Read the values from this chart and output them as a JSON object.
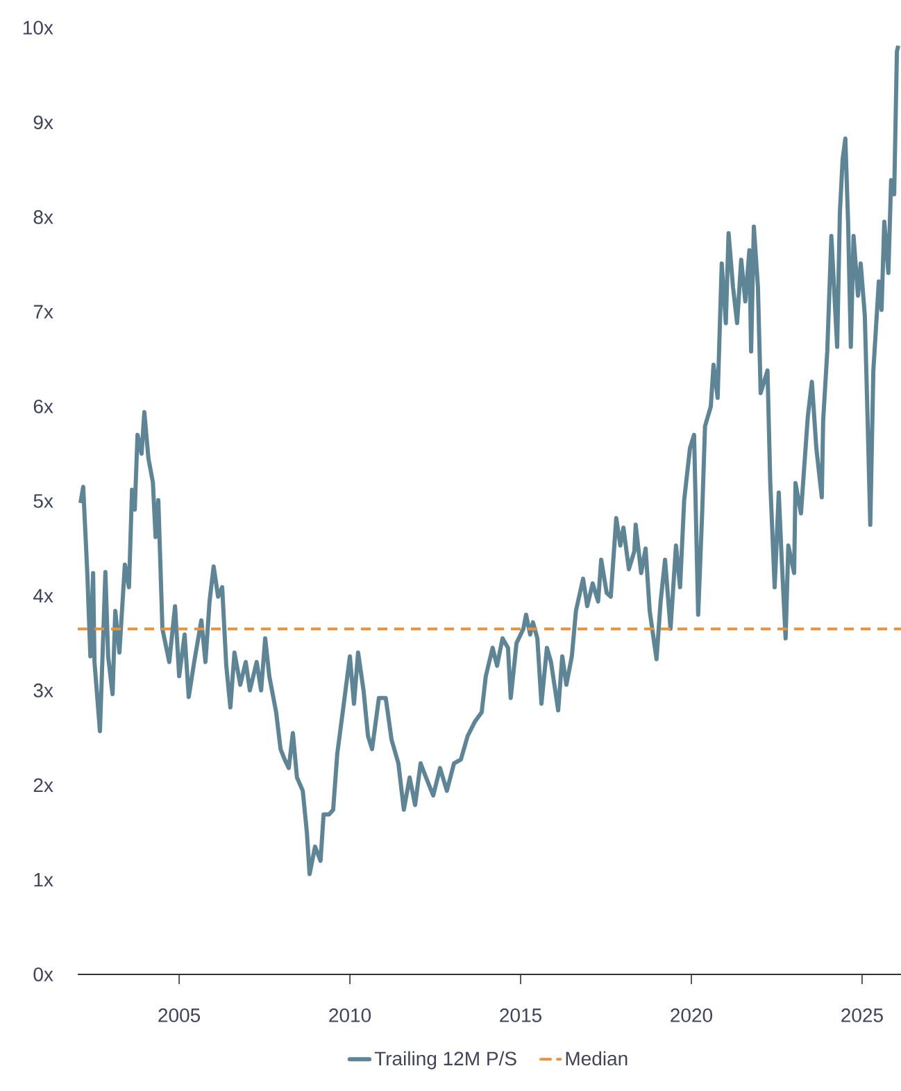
{
  "chart_data": {
    "type": "line",
    "x": [
      2002.11,
      2002.19,
      2002.31,
      2002.4,
      2002.48,
      2002.52,
      2002.68,
      2002.84,
      2002.92,
      2003.05,
      2003.13,
      2003.25,
      2003.41,
      2003.53,
      2003.62,
      2003.7,
      2003.78,
      2003.9,
      2003.98,
      2004.1,
      2004.23,
      2004.31,
      2004.39,
      2004.51,
      2004.71,
      2004.88,
      2005.0,
      2005.16,
      2005.28,
      2005.44,
      2005.65,
      2005.77,
      2005.89,
      2006.01,
      2006.14,
      2006.26,
      2006.38,
      2006.5,
      2006.62,
      2006.79,
      2006.95,
      2007.07,
      2007.27,
      2007.4,
      2007.52,
      2007.64,
      2007.84,
      2007.97,
      2008.09,
      2008.21,
      2008.33,
      2008.45,
      2008.62,
      2008.74,
      2008.82,
      2008.98,
      2009.14,
      2009.23,
      2009.39,
      2009.51,
      2009.63,
      2009.79,
      2010.0,
      2010.12,
      2010.24,
      2010.4,
      2010.53,
      2010.65,
      2010.85,
      2011.05,
      2011.22,
      2011.42,
      2011.58,
      2011.75,
      2011.91,
      2012.07,
      2012.23,
      2012.44,
      2012.64,
      2012.84,
      2013.05,
      2013.25,
      2013.45,
      2013.66,
      2013.86,
      2013.98,
      2014.18,
      2014.31,
      2014.47,
      2014.63,
      2014.71,
      2014.88,
      2015.08,
      2015.16,
      2015.28,
      2015.36,
      2015.49,
      2015.61,
      2015.77,
      2015.89,
      2016.1,
      2016.22,
      2016.34,
      2016.5,
      2016.62,
      2016.83,
      2016.95,
      2017.11,
      2017.27,
      2017.36,
      2017.52,
      2017.64,
      2017.8,
      2017.92,
      2018.01,
      2018.17,
      2018.33,
      2018.37,
      2018.53,
      2018.66,
      2018.78,
      2018.98,
      2019.1,
      2019.23,
      2019.39,
      2019.55,
      2019.67,
      2019.79,
      2019.96,
      2020.08,
      2020.2,
      2020.32,
      2020.4,
      2020.57,
      2020.65,
      2020.77,
      2020.89,
      2021.01,
      2021.09,
      2021.22,
      2021.34,
      2021.46,
      2021.58,
      2021.7,
      2021.75,
      2021.83,
      2021.95,
      2022.03,
      2022.23,
      2022.31,
      2022.44,
      2022.56,
      2022.64,
      2022.76,
      2022.84,
      2023.01,
      2023.05,
      2023.21,
      2023.29,
      2023.41,
      2023.53,
      2023.66,
      2023.82,
      2023.86,
      2023.98,
      2024.1,
      2024.27,
      2024.35,
      2024.43,
      2024.51,
      2024.59,
      2024.67,
      2024.75,
      2024.88,
      2024.96,
      2025.08,
      2025.16,
      2025.24,
      2025.33,
      2025.49,
      2025.57,
      2025.65,
      2025.77,
      2025.85,
      2025.94,
      2026.02,
      2026.06
    ],
    "series": [
      {
        "name": "Trailing 12M P/S",
        "color": "#5e8596",
        "values": [
          4.98,
          5.15,
          4.24,
          3.36,
          4.24,
          3.3,
          2.57,
          4.25,
          3.36,
          2.96,
          3.84,
          3.4,
          4.33,
          4.09,
          5.12,
          4.91,
          5.7,
          5.5,
          5.94,
          5.45,
          5.2,
          4.62,
          5.01,
          3.65,
          3.3,
          3.89,
          3.15,
          3.59,
          2.93,
          3.3,
          3.74,
          3.3,
          3.94,
          4.31,
          3.99,
          4.09,
          3.26,
          2.82,
          3.4,
          3.06,
          3.3,
          3.0,
          3.3,
          3.0,
          3.55,
          3.15,
          2.77,
          2.38,
          2.27,
          2.18,
          2.55,
          2.08,
          1.94,
          1.5,
          1.06,
          1.35,
          1.2,
          1.69,
          1.69,
          1.74,
          2.33,
          2.77,
          3.36,
          2.86,
          3.4,
          3.0,
          2.52,
          2.38,
          2.92,
          2.92,
          2.48,
          2.23,
          1.74,
          2.08,
          1.79,
          2.23,
          2.08,
          1.89,
          2.18,
          1.94,
          2.23,
          2.27,
          2.52,
          2.67,
          2.77,
          3.15,
          3.45,
          3.26,
          3.55,
          3.45,
          2.92,
          3.5,
          3.65,
          3.8,
          3.59,
          3.72,
          3.55,
          2.86,
          3.45,
          3.3,
          2.79,
          3.36,
          3.06,
          3.36,
          3.84,
          4.18,
          3.89,
          4.13,
          3.94,
          4.38,
          4.03,
          3.99,
          4.82,
          4.53,
          4.72,
          4.28,
          4.47,
          4.75,
          4.24,
          4.5,
          3.84,
          3.33,
          3.94,
          4.38,
          3.65,
          4.53,
          4.09,
          5.01,
          5.56,
          5.7,
          3.8,
          4.91,
          5.79,
          6.0,
          6.44,
          6.09,
          7.51,
          6.88,
          7.83,
          7.26,
          6.88,
          7.55,
          7.11,
          7.65,
          6.58,
          7.9,
          7.26,
          6.14,
          6.38,
          5.21,
          4.09,
          5.09,
          4.43,
          3.55,
          4.53,
          4.24,
          5.19,
          4.87,
          5.28,
          5.89,
          6.26,
          5.56,
          5.04,
          5.85,
          6.58,
          7.8,
          6.63,
          8.05,
          8.61,
          8.83,
          7.95,
          6.63,
          7.8,
          7.17,
          7.51,
          6.96,
          5.89,
          4.75,
          6.38,
          7.32,
          7.02,
          7.95,
          7.41,
          8.39,
          8.24,
          9.75,
          9.81
        ]
      }
    ],
    "xlim": [
      2002.03,
      2026.14
    ],
    "ylim": [
      0,
      10
    ],
    "xticks": [
      2005,
      2010,
      2015,
      2020,
      2025
    ],
    "yticks": [
      {
        "value": 0,
        "label": "0x"
      },
      {
        "value": 1,
        "label": "1x"
      },
      {
        "value": 2,
        "label": "2x"
      },
      {
        "value": 3,
        "label": "3x"
      },
      {
        "value": 4,
        "label": "4x"
      },
      {
        "value": 5,
        "label": "5x"
      },
      {
        "value": 6,
        "label": "6x"
      },
      {
        "value": 7,
        "label": "7x"
      },
      {
        "value": 8,
        "label": "8x"
      },
      {
        "value": 9,
        "label": "9x"
      },
      {
        "value": 10,
        "label": "10x"
      }
    ],
    "ref_lines": [
      {
        "axis": "y",
        "value": 3.65,
        "label": "Median",
        "color": "#e8923a",
        "line_style": "dashed"
      }
    ],
    "legend": "bottom",
    "marker": "none",
    "line_style": "solid"
  }
}
